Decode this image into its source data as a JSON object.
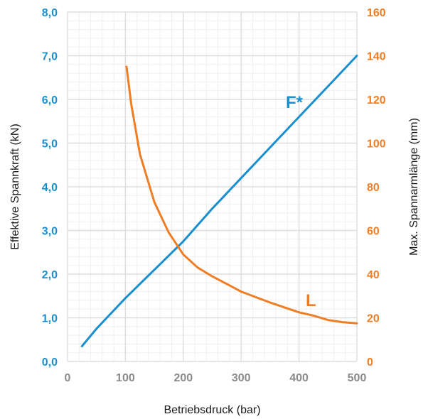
{
  "chart_data": {
    "type": "line",
    "title": "",
    "xlabel": "Betriebsdruck (bar)",
    "ylabel_left": "Effektive Spannkraft  (kN)",
    "ylabel_right": "Max. Spannarmlänge (mm)",
    "xlim": [
      0,
      500
    ],
    "ylim_left": [
      0,
      8
    ],
    "ylim_right": [
      0,
      160
    ],
    "x_ticks": [
      "0",
      "100",
      "200",
      "300",
      "400",
      "500"
    ],
    "y_left_ticks": [
      "0,0",
      "1,0",
      "2,0",
      "3,0",
      "4,0",
      "5,0",
      "6,0",
      "7,0",
      "8,0"
    ],
    "y_right_ticks": [
      "0",
      "20",
      "40",
      "60",
      "80",
      "100",
      "120",
      "140",
      "160"
    ],
    "grid": true,
    "colors": {
      "left_axis": "#1a8fd0",
      "right_axis": "#f07d23",
      "grid": "#dddddd",
      "grid_minor": "#efefef"
    },
    "series": [
      {
        "name": "F*",
        "axis": "left",
        "color": "#1a8fd0",
        "x": [
          25,
          50,
          100,
          150,
          200,
          250,
          300,
          350,
          400,
          450,
          500
        ],
        "y": [
          0.35,
          0.75,
          1.45,
          2.1,
          2.75,
          3.5,
          4.2,
          4.9,
          5.6,
          6.3,
          7.0
        ]
      },
      {
        "name": "L",
        "axis": "right",
        "color": "#f07d23",
        "x": [
          102,
          110,
          125,
          150,
          175,
          200,
          225,
          250,
          275,
          300,
          350,
          400,
          425,
          450,
          475,
          500
        ],
        "y": [
          135,
          118,
          95,
          73,
          59,
          49,
          43,
          39,
          35.5,
          32,
          27,
          22.5,
          21,
          19,
          18,
          17.5
        ]
      }
    ]
  }
}
